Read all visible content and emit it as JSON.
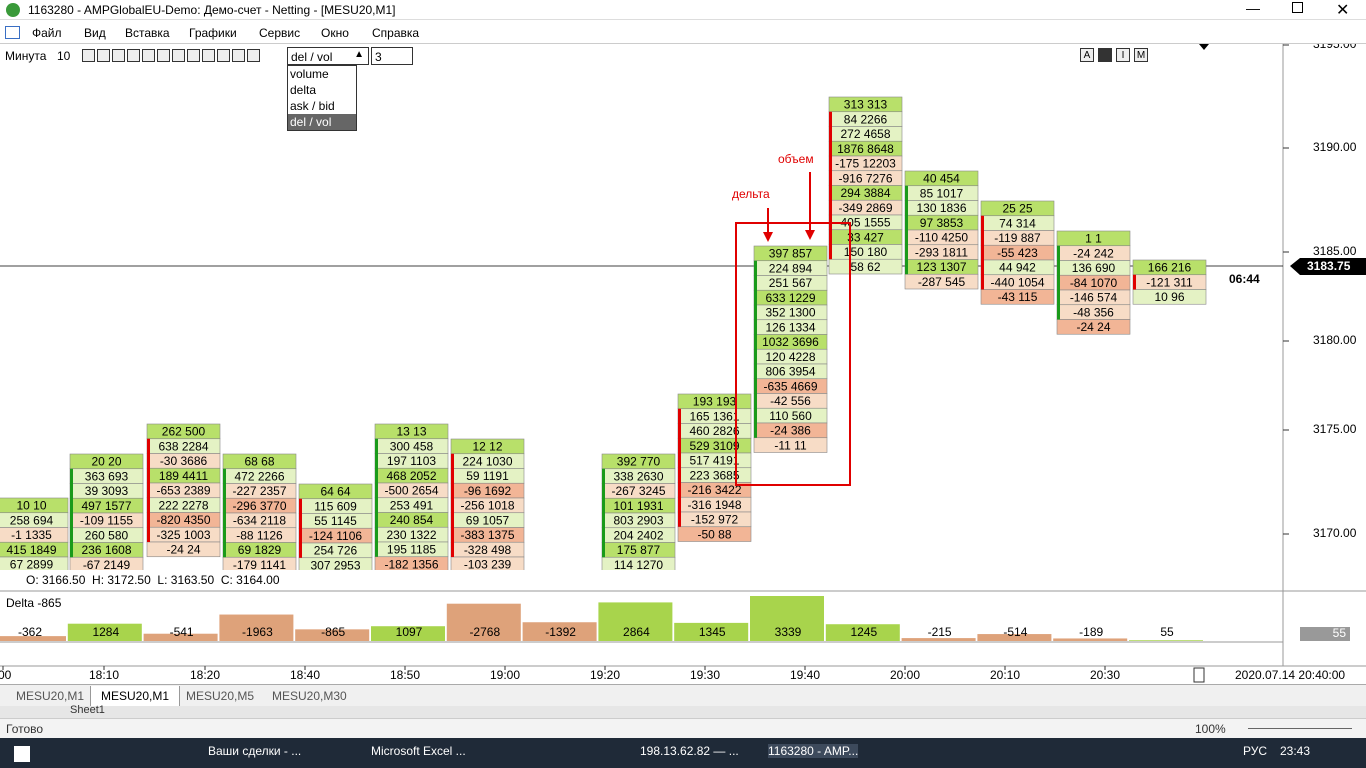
{
  "window": {
    "title": "1163280 - AMPGlobalEU-Demo: Демо-счет - Netting - [MESU20,M1]"
  },
  "menu": [
    "Файл",
    "Вид",
    "Вставка",
    "Графики",
    "Сервис",
    "Окно",
    "Справка"
  ],
  "toolbar": {
    "timeframe_label": "Минута",
    "timeframe_value": "10",
    "mode_selected": "del / vol",
    "mode_options": [
      "volume",
      "delta",
      "ask / bid",
      "del / vol"
    ],
    "depth": "3",
    "right_buttons": [
      "A",
      "I",
      "M"
    ]
  },
  "annotations": {
    "volume": "объем",
    "delta": "дельта"
  },
  "price_axis": {
    "ticks": [
      "3195.00",
      "3190.00",
      "3185.00",
      "3180.00",
      "3175.00",
      "3170.00"
    ],
    "current_price": "3183.75",
    "timer": "06:44"
  },
  "clusters": [
    {
      "cells": [
        "10 10",
        "258 694",
        "-1 1335",
        "415 1849",
        "67 2899"
      ]
    },
    {
      "cells": [
        "20 20",
        "363 693",
        "39 3093",
        "497 1577",
        "-109 1155",
        "260 580",
        "236 1608",
        "-67 2149"
      ]
    },
    {
      "cells": [
        "262 500",
        "638 2284",
        "-30 3686",
        "189 4411",
        "-653 2389",
        "222 2278",
        "-820 4350",
        "-325 1003",
        "-24 24"
      ]
    },
    {
      "cells": [
        "68 68",
        "472 2266",
        "-227 2357",
        "-296 3770",
        "-634 2118",
        "-88 1126",
        "69 1829",
        "-179 1141"
      ]
    },
    {
      "cells": [
        "64 64",
        "115 609",
        "55 1145",
        "-124 1106",
        "254 726",
        "307 2953"
      ]
    },
    {
      "cells": [
        "13 13",
        "300 458",
        "197 1103",
        "468 2052",
        "-500 2654",
        "253 491",
        "240 854",
        "230 1322",
        "195 1185",
        "-182 1356"
      ]
    },
    {
      "cells": [
        "12 12",
        "224 1030",
        "59 1191",
        "-96 1692",
        "-256 1018",
        "69 1057",
        "-383 1375",
        "-328 498",
        "-103 239"
      ]
    },
    {
      "cells": [
        "392 770",
        "338 2630",
        "-267 3245",
        "101 1931",
        "803 2903",
        "204 2402",
        "175 877",
        "114 1270"
      ]
    },
    {
      "cells": [
        "193 193",
        "165 1361",
        "460 2826",
        "529 3109",
        "517 4191",
        "223 3685",
        "-216 3422",
        "-316 1948",
        "-152 972",
        "-50 88"
      ]
    },
    {
      "cells": [
        "397 857",
        "224 894",
        "251 567",
        "633 1229",
        "352 1300",
        "126 1334",
        "1032 3696",
        "120 4228",
        "806 3954",
        "-635 4669",
        "-42 556",
        "110 560",
        "-24 386",
        "-11 11"
      ]
    },
    {
      "cells": [
        "313 313",
        "84 2266",
        "272 4658",
        "1876 8648",
        "-175 12203",
        "-916 7276",
        "294 3884",
        "-349 2869",
        "405 1555",
        "33 427",
        "150 180",
        "58 62"
      ]
    },
    {
      "cells": [
        "40 454",
        "85 1017",
        "130 1836",
        "97 3853",
        "-110 4250",
        "-293 1811",
        "123 1307",
        "-287 545"
      ]
    },
    {
      "cells": [
        "25 25",
        "74 314",
        "-119 887",
        "-55 423",
        "44 942",
        "-440 1054",
        "-43 115"
      ]
    },
    {
      "cells": [
        "1 1",
        "-24 242",
        "136 690",
        "-84 1070",
        "-146 574",
        "-48 356",
        "-24 24"
      ]
    },
    {
      "cells": [
        "166 216",
        "-121 311",
        "10 96"
      ]
    }
  ],
  "ohlc": "O: 3166.50  H: 3172.50  L: 3163.50  C: 3164.00",
  "delta_panel": {
    "title": "Delta -865",
    "values": [
      -362,
      1284,
      -541,
      -1963,
      -865,
      1097,
      -2768,
      -1392,
      2864,
      1345,
      3339,
      1245,
      -215,
      -514,
      -189,
      55
    ]
  },
  "time_axis": {
    "labels": [
      ":00",
      "18:10",
      "18:20",
      "18:40",
      "18:50",
      "19:00",
      "19:20",
      "19:30",
      "19:40",
      "20:00",
      "20:10",
      "20:30"
    ],
    "cursor_date": "2020.07.14 20:40:00"
  },
  "tabs": [
    "MESU20,M1",
    "MESU20,M1",
    "MESU20,M5",
    "MESU20,M30"
  ],
  "excel": {
    "sheet": "Sheet1",
    "status": "Готово",
    "zoom": "100%"
  },
  "taskbar": {
    "items": [
      "Ваши сделки - ...",
      "Microsoft Excel ...",
      "198.13.62.82 — ...",
      "1163280 - AMP..."
    ],
    "lang": "РУС",
    "clock": "23:43"
  }
}
